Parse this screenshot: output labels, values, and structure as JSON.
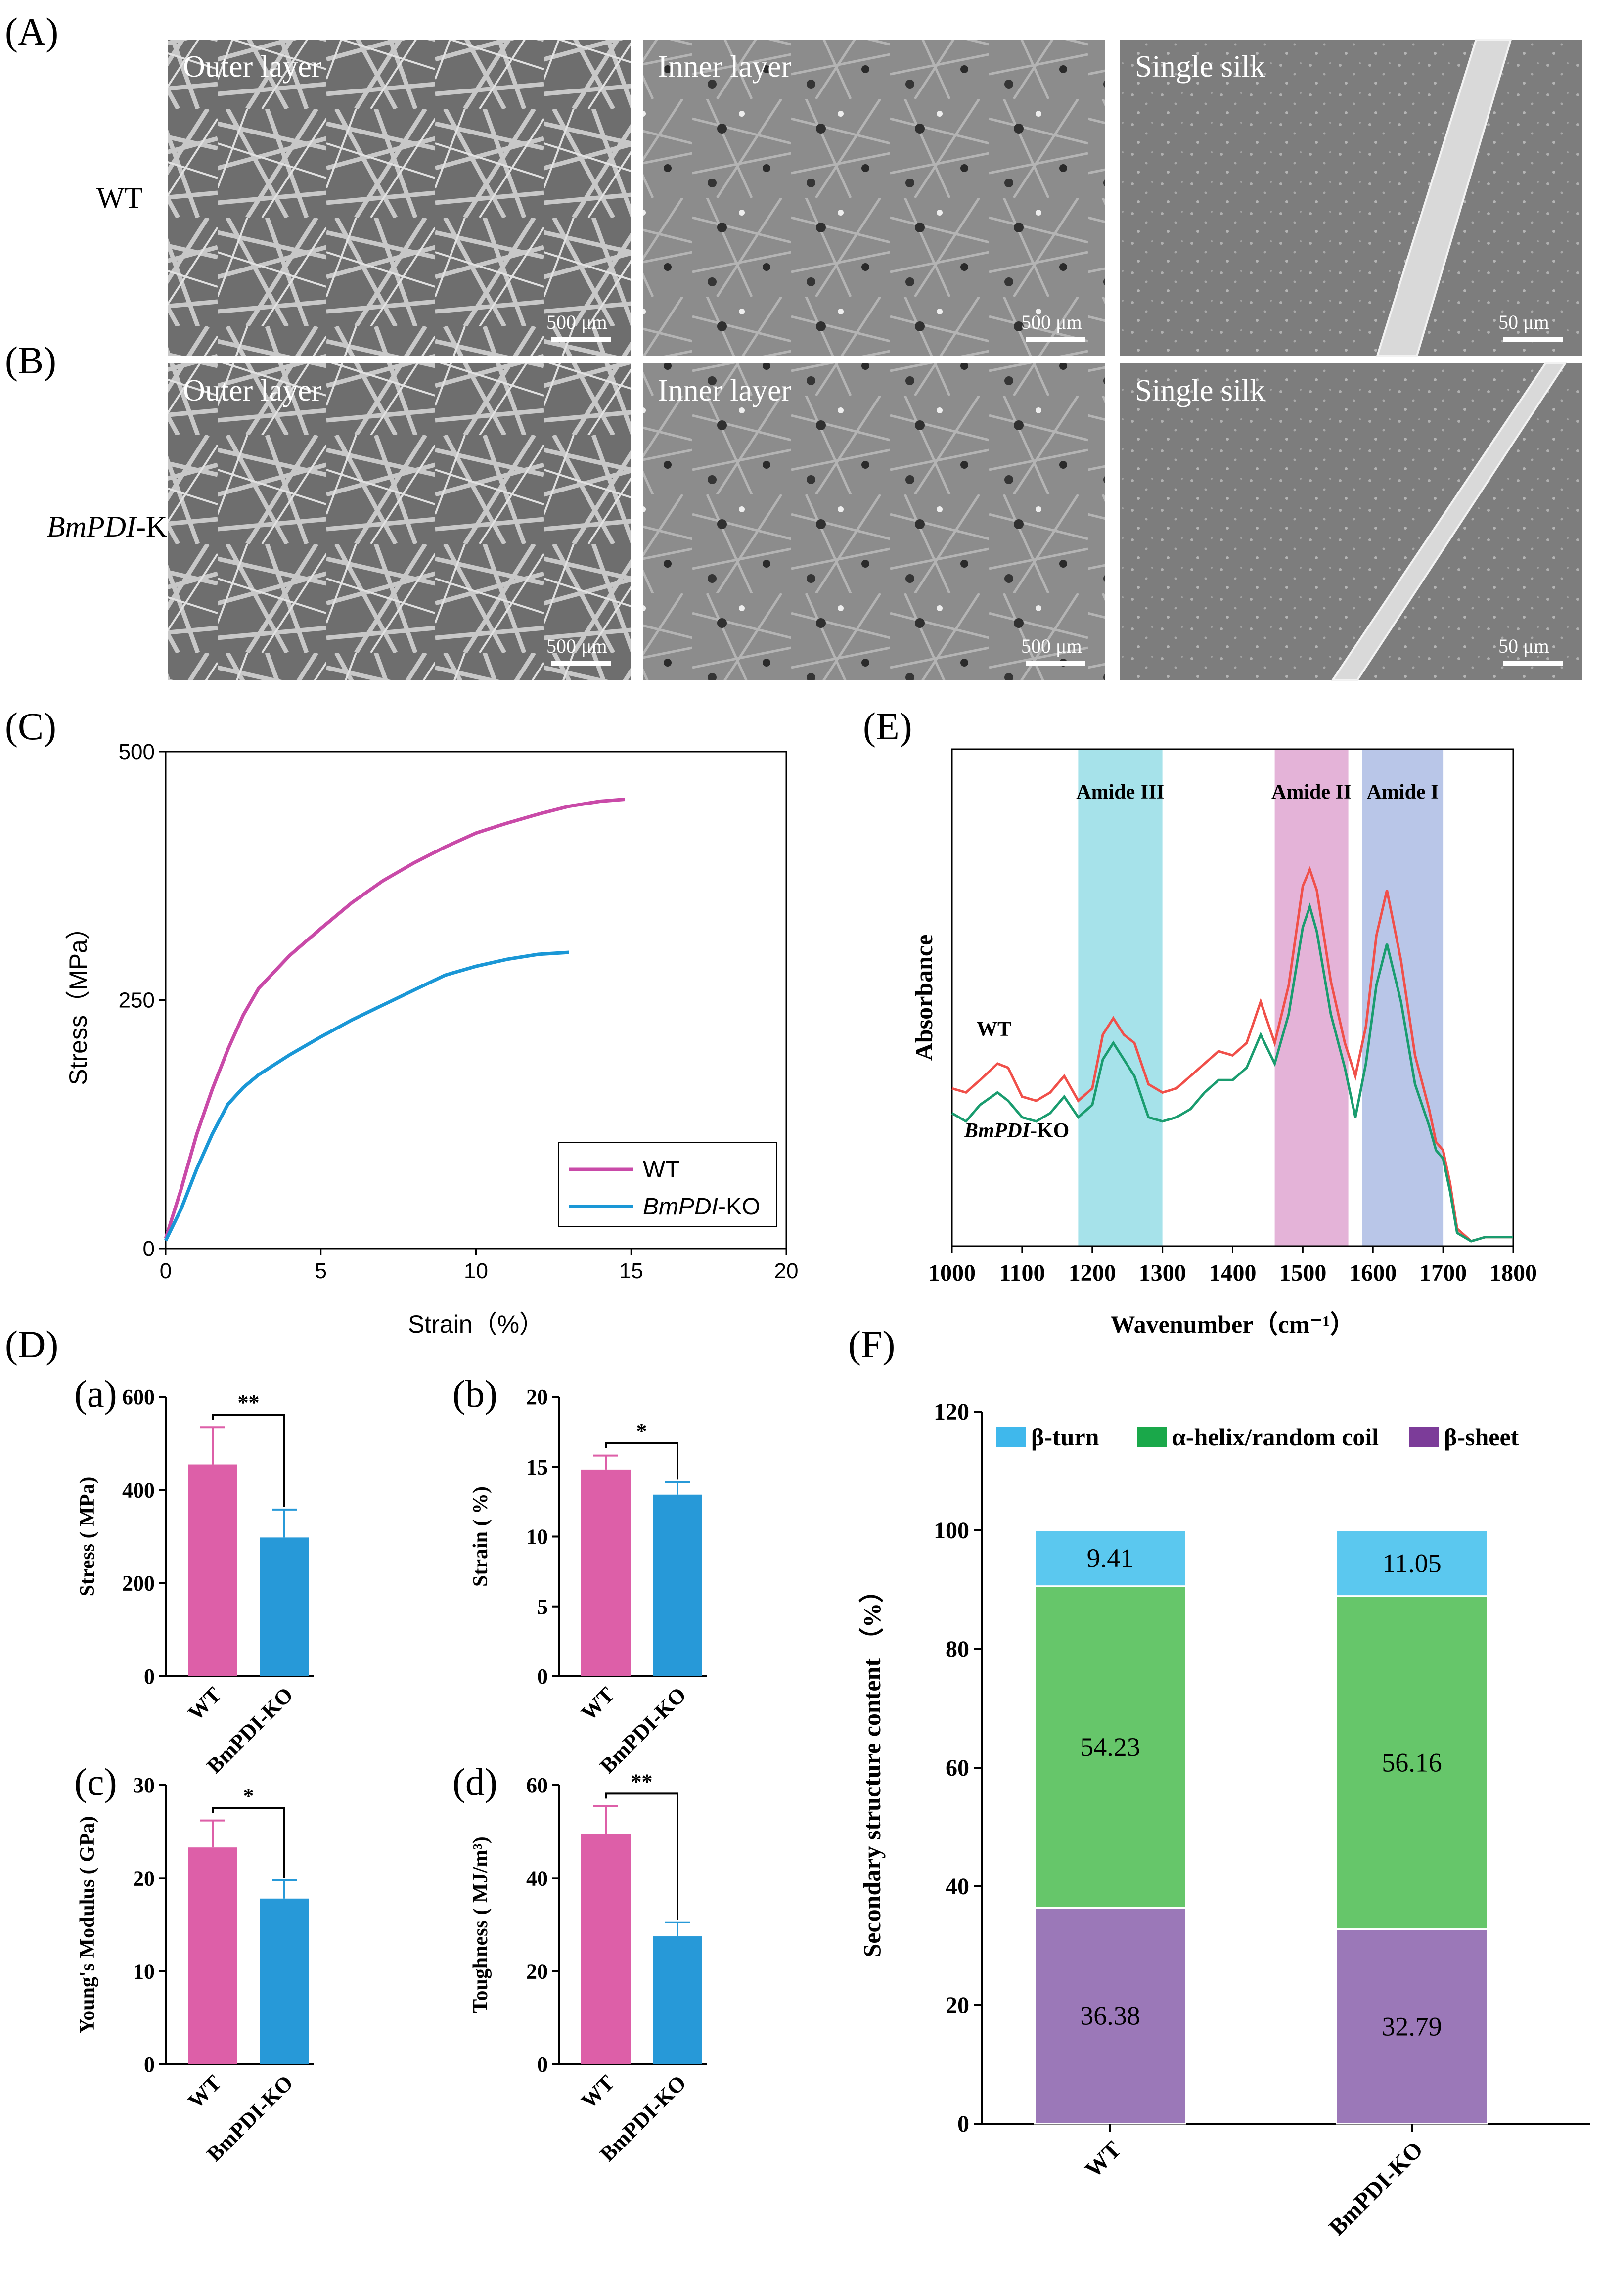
{
  "panel_labels": {
    "A": "(A)",
    "B": "(B)",
    "C": "(C)",
    "D": "(D)",
    "E": "(E)",
    "F": "(F)"
  },
  "sem": {
    "rows": [
      "WT",
      "BmPDI-KO"
    ],
    "row_label_parts": [
      {
        "italic": "",
        "normal": "WT"
      },
      {
        "italic": "BmPDI",
        "normal": "-KO"
      }
    ],
    "columns": [
      "Outer layer",
      "Inner layer",
      "Single silk"
    ],
    "scalebars": [
      "500 μm",
      "500 μm",
      "50 μm"
    ],
    "colors": {
      "wt_bg": "#7a7a7a",
      "ko_bg": "#6f6f6f",
      "fiber": "#c9c9c9"
    }
  },
  "chart_data": [
    {
      "id": "C",
      "type": "line",
      "xlabel": "Strain（%）",
      "ylabel": "Stress（MPa）",
      "xlim": [
        0,
        20
      ],
      "ylim": [
        0,
        500
      ],
      "xticks": [
        "0",
        "5",
        "10",
        "15",
        "20"
      ],
      "yticks": [
        "0",
        "250",
        "500"
      ],
      "series": [
        {
          "name": "WT",
          "color": "#c94aa8",
          "x": [
            0,
            0.5,
            1,
            1.5,
            2,
            2.5,
            3,
            4,
            5,
            6,
            7,
            8,
            9,
            10,
            11,
            12,
            13,
            14,
            14.8
          ],
          "y": [
            10,
            60,
            115,
            160,
            200,
            235,
            262,
            295,
            322,
            348,
            370,
            388,
            404,
            418,
            428,
            437,
            445,
            450,
            452
          ]
        },
        {
          "name": "BmPDI-KO",
          "color": "#1a97d6",
          "x": [
            0,
            0.5,
            1,
            1.5,
            2,
            2.5,
            3,
            4,
            5,
            6,
            7,
            8,
            9,
            10,
            11,
            12,
            13
          ],
          "y": [
            8,
            40,
            80,
            115,
            145,
            162,
            175,
            195,
            213,
            230,
            245,
            260,
            275,
            284,
            291,
            296,
            298
          ]
        }
      ],
      "legend": [
        {
          "italic": "",
          "normal": "WT"
        },
        {
          "italic": "BmPDI",
          "normal": "-KO"
        }
      ]
    },
    {
      "id": "D-a",
      "type": "bar",
      "sub": "(a)",
      "categories": [
        "WT",
        "BmPDI-KO"
      ],
      "values": [
        455,
        298
      ],
      "errors": [
        80,
        60
      ],
      "ylabel": "Stress ( MPa)",
      "ylim": [
        0,
        600
      ],
      "yticks": [
        "0",
        "200",
        "400",
        "600"
      ],
      "sig": "**",
      "colors": [
        "#dd5fa8",
        "#2799d8"
      ]
    },
    {
      "id": "D-b",
      "type": "bar",
      "sub": "(b)",
      "categories": [
        "WT",
        "BmPDI-KO"
      ],
      "values": [
        14.8,
        13.0
      ],
      "errors": [
        1.0,
        0.9
      ],
      "ylabel": "Strain ( %)",
      "ylim": [
        0,
        20
      ],
      "yticks": [
        "0",
        "5",
        "10",
        "15",
        "20"
      ],
      "sig": "*",
      "colors": [
        "#dd5fa8",
        "#2799d8"
      ]
    },
    {
      "id": "D-c",
      "type": "bar",
      "sub": "(c)",
      "categories": [
        "WT",
        "BmPDI-KO"
      ],
      "values": [
        23.3,
        17.8
      ],
      "errors": [
        2.9,
        2.0
      ],
      "ylabel": "Young's Modulus ( GPa)",
      "ylim": [
        0,
        30
      ],
      "yticks": [
        "0",
        "10",
        "20",
        "30"
      ],
      "sig": "*",
      "colors": [
        "#dd5fa8",
        "#2799d8"
      ]
    },
    {
      "id": "D-d",
      "type": "bar",
      "sub": "(d)",
      "categories": [
        "WT",
        "BmPDI-KO"
      ],
      "values": [
        49.5,
        27.5
      ],
      "errors": [
        6.0,
        3.0
      ],
      "ylabel": "Toughness ( MJ/m³)",
      "ylim": [
        0,
        60
      ],
      "yticks": [
        "0",
        "20",
        "40",
        "60"
      ],
      "sig": "**",
      "colors": [
        "#dd5fa8",
        "#2799d8"
      ]
    },
    {
      "id": "E",
      "type": "line",
      "xlabel": "Wavenumber（cm⁻¹）",
      "ylabel": "Absorbance",
      "xlim": [
        1000,
        1800
      ],
      "xticks": [
        "1000",
        "1100",
        "1200",
        "1300",
        "1400",
        "1500",
        "1600",
        "1700",
        "1800"
      ],
      "bands": [
        {
          "name": "Amide III",
          "from": 1180,
          "to": 1300,
          "color": "#a6e2ea"
        },
        {
          "name": "Amide II",
          "from": 1460,
          "to": 1565,
          "color": "#e4b3d8"
        },
        {
          "name": "Amide I",
          "from": 1585,
          "to": 1700,
          "color": "#b9c6e8"
        }
      ],
      "series": [
        {
          "name": "WT",
          "color": "#f0504a",
          "x": [
            1000,
            1020,
            1040,
            1065,
            1080,
            1100,
            1120,
            1140,
            1160,
            1180,
            1200,
            1215,
            1230,
            1245,
            1260,
            1280,
            1300,
            1320,
            1340,
            1360,
            1380,
            1400,
            1420,
            1440,
            1460,
            1480,
            1500,
            1510,
            1520,
            1540,
            1560,
            1575,
            1590,
            1605,
            1620,
            1640,
            1660,
            1680,
            1690,
            1700,
            1710,
            1720,
            1740,
            1760,
            1800
          ],
          "y": [
            0.37,
            0.36,
            0.39,
            0.43,
            0.42,
            0.35,
            0.34,
            0.36,
            0.4,
            0.34,
            0.37,
            0.5,
            0.54,
            0.5,
            0.48,
            0.38,
            0.36,
            0.37,
            0.4,
            0.43,
            0.46,
            0.45,
            0.48,
            0.58,
            0.48,
            0.62,
            0.86,
            0.9,
            0.85,
            0.63,
            0.48,
            0.4,
            0.52,
            0.74,
            0.85,
            0.68,
            0.45,
            0.32,
            0.24,
            0.22,
            0.14,
            0.03,
            0.0,
            0.01,
            0.01
          ]
        },
        {
          "name": "BmPDI-KO",
          "color": "#1a9c6f",
          "x": [
            1000,
            1020,
            1040,
            1065,
            1080,
            1100,
            1120,
            1140,
            1160,
            1180,
            1200,
            1215,
            1230,
            1245,
            1260,
            1280,
            1300,
            1320,
            1340,
            1360,
            1380,
            1400,
            1420,
            1440,
            1460,
            1480,
            1500,
            1510,
            1520,
            1540,
            1560,
            1575,
            1590,
            1605,
            1620,
            1640,
            1660,
            1680,
            1690,
            1700,
            1710,
            1720,
            1740,
            1760,
            1800
          ],
          "y": [
            0.31,
            0.29,
            0.33,
            0.36,
            0.34,
            0.3,
            0.29,
            0.31,
            0.35,
            0.3,
            0.33,
            0.44,
            0.48,
            0.44,
            0.4,
            0.3,
            0.29,
            0.3,
            0.32,
            0.36,
            0.39,
            0.39,
            0.42,
            0.5,
            0.43,
            0.55,
            0.76,
            0.81,
            0.75,
            0.55,
            0.42,
            0.3,
            0.43,
            0.62,
            0.72,
            0.58,
            0.38,
            0.28,
            0.22,
            0.2,
            0.12,
            0.02,
            0.0,
            0.01,
            0.01
          ]
        }
      ],
      "series_labels": [
        {
          "italic": "",
          "normal": "WT"
        },
        {
          "italic": "BmPDI",
          "normal": "-KO"
        }
      ]
    },
    {
      "id": "F",
      "type": "bar",
      "stacked": true,
      "categories": [
        "WT",
        "BmPDI-KO"
      ],
      "ylabel": "Secondary structure content （%）",
      "ylim": [
        0,
        120
      ],
      "yticks": [
        "0",
        "20",
        "40",
        "60",
        "80",
        "100",
        "120"
      ],
      "series": [
        {
          "name": "β-sheet",
          "color": "#9b78b8",
          "legend_color": "#7c3c99",
          "values": [
            36.38,
            32.79
          ],
          "labels": [
            "36.38",
            "32.79"
          ]
        },
        {
          "name": "α-helix/random coil",
          "color": "#66c66a",
          "legend_color": "#1aa84a",
          "values": [
            54.23,
            56.16
          ],
          "labels": [
            "54.23",
            "56.16"
          ]
        },
        {
          "name": "β-turn",
          "color": "#5bc8ef",
          "legend_color": "#3fb8ec",
          "values": [
            9.41,
            11.05
          ],
          "labels": [
            "9.41",
            "11.05"
          ]
        }
      ],
      "legend_order": [
        "β-turn",
        "α-helix/random coil",
        "β-sheet"
      ]
    }
  ]
}
